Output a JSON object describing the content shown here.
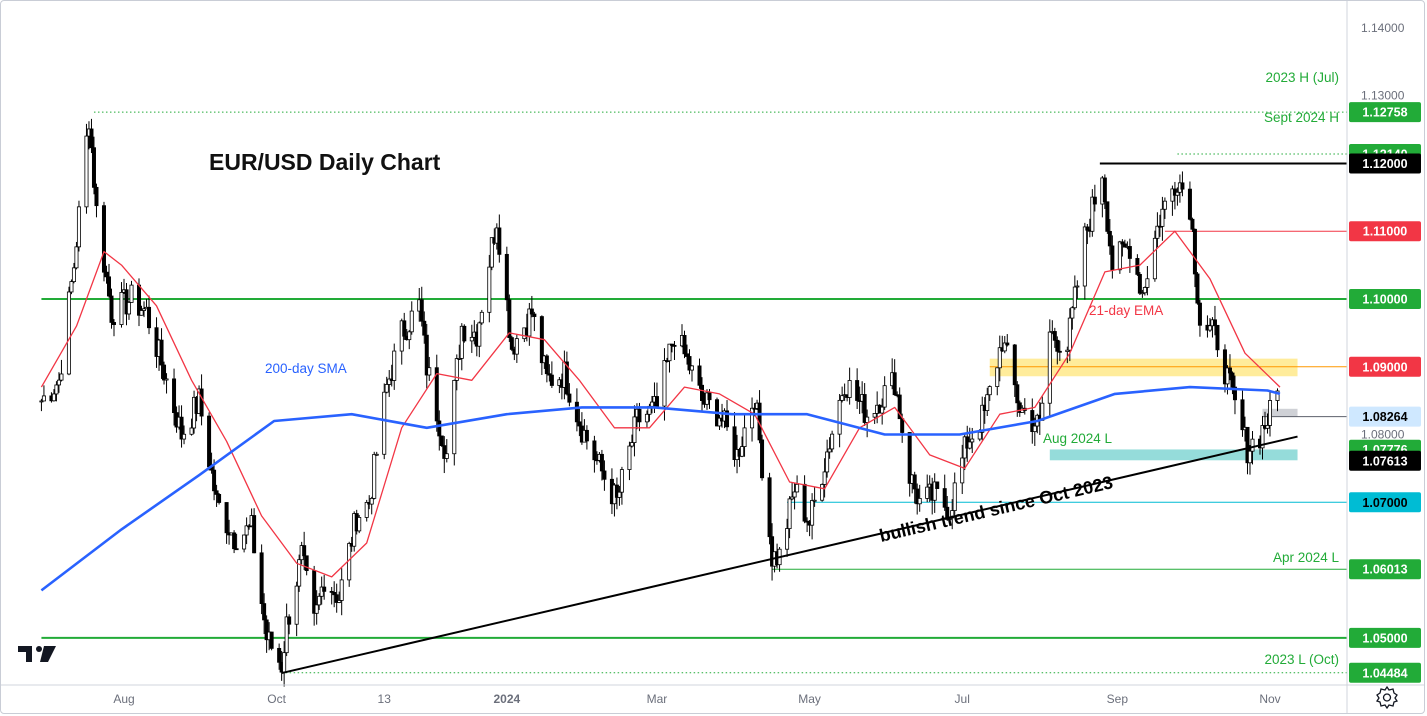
{
  "chart_data": {
    "type": "candlestick",
    "title": "EUR/USD Daily Chart",
    "ylim": [
      1.0395,
      1.1425
    ],
    "y_ticks": [
      "1.14000",
      "1.13000",
      "1.08000"
    ],
    "x_ticks": [
      {
        "label": "Aug",
        "at": "2023-08-01"
      },
      {
        "label": "Oct",
        "at": "2023-10-01"
      },
      {
        "label": "13",
        "at": "2023-11-13"
      },
      {
        "label": "2024",
        "at": "2024-01-01"
      },
      {
        "label": "Mar",
        "at": "2024-03-01"
      },
      {
        "label": "May",
        "at": "2024-05-01"
      },
      {
        "label": "Jul",
        "at": "2024-07-01"
      },
      {
        "label": "Sep",
        "at": "2024-09-01"
      },
      {
        "label": "Nov",
        "at": "2024-11-01"
      }
    ],
    "price_path": [
      [
        "2023-06-29",
        1.085
      ],
      [
        "2023-07-06",
        1.088
      ],
      [
        "2023-07-12",
        1.105
      ],
      [
        "2023-07-18",
        1.127
      ],
      [
        "2023-07-21",
        1.113
      ],
      [
        "2023-07-27",
        1.098
      ],
      [
        "2023-08-04",
        1.1
      ],
      [
        "2023-08-10",
        1.098
      ],
      [
        "2023-08-18",
        1.088
      ],
      [
        "2023-08-24",
        1.08
      ],
      [
        "2023-08-31",
        1.085
      ],
      [
        "2023-09-07",
        1.07
      ],
      [
        "2023-09-14",
        1.065
      ],
      [
        "2023-09-21",
        1.066
      ],
      [
        "2023-09-27",
        1.05
      ],
      [
        "2023-10-03",
        1.046
      ],
      [
        "2023-10-05",
        1.052
      ],
      [
        "2023-10-11",
        1.062
      ],
      [
        "2023-10-16",
        1.052
      ],
      [
        "2023-10-20",
        1.059
      ],
      [
        "2023-10-26",
        1.056
      ],
      [
        "2023-11-02",
        1.068
      ],
      [
        "2023-11-07",
        1.07
      ],
      [
        "2023-11-14",
        1.087
      ],
      [
        "2023-11-20",
        1.095
      ],
      [
        "2023-11-27",
        1.099
      ],
      [
        "2023-11-30",
        1.09
      ],
      [
        "2023-12-08",
        1.077
      ],
      [
        "2023-12-14",
        1.096
      ],
      [
        "2023-12-20",
        1.095
      ],
      [
        "2023-12-28",
        1.112
      ],
      [
        "2024-01-03",
        1.093
      ],
      [
        "2024-01-11",
        1.098
      ],
      [
        "2024-01-17",
        1.088
      ],
      [
        "2024-01-24",
        1.089
      ],
      [
        "2024-01-31",
        1.081
      ],
      [
        "2024-02-06",
        1.076
      ],
      [
        "2024-02-14",
        1.07
      ],
      [
        "2024-02-22",
        1.082
      ],
      [
        "2024-03-01",
        1.084
      ],
      [
        "2024-03-08",
        1.095
      ],
      [
        "2024-03-14",
        1.09
      ],
      [
        "2024-03-19",
        1.085
      ],
      [
        "2024-03-26",
        1.083
      ],
      [
        "2024-04-02",
        1.077
      ],
      [
        "2024-04-09",
        1.086
      ],
      [
        "2024-04-16",
        1.062
      ],
      [
        "2024-04-19",
        1.062
      ],
      [
        "2024-04-25",
        1.072
      ],
      [
        "2024-05-01",
        1.067
      ],
      [
        "2024-05-07",
        1.076
      ],
      [
        "2024-05-15",
        1.088
      ],
      [
        "2024-05-24",
        1.083
      ],
      [
        "2024-06-04",
        1.088
      ],
      [
        "2024-06-10",
        1.074
      ],
      [
        "2024-06-14",
        1.07
      ],
      [
        "2024-06-20",
        1.071
      ],
      [
        "2024-06-26",
        1.069
      ],
      [
        "2024-07-03",
        1.079
      ],
      [
        "2024-07-10",
        1.083
      ],
      [
        "2024-07-17",
        1.094
      ],
      [
        "2024-07-24",
        1.084
      ],
      [
        "2024-08-01",
        1.081
      ],
      [
        "2024-08-05",
        1.095
      ],
      [
        "2024-08-12",
        1.093
      ],
      [
        "2024-08-19",
        1.109
      ],
      [
        "2024-08-26",
        1.119
      ],
      [
        "2024-08-30",
        1.105
      ],
      [
        "2024-09-06",
        1.108
      ],
      [
        "2024-09-11",
        1.101
      ],
      [
        "2024-09-18",
        1.112
      ],
      [
        "2024-09-25",
        1.118
      ],
      [
        "2024-09-30",
        1.114
      ],
      [
        "2024-10-04",
        1.097
      ],
      [
        "2024-10-11",
        1.094
      ],
      [
        "2024-10-18",
        1.084
      ],
      [
        "2024-10-23",
        1.078
      ],
      [
        "2024-10-28",
        1.08
      ],
      [
        "2024-11-01",
        1.083
      ],
      [
        "2024-11-05",
        1.087
      ]
    ],
    "series": [
      {
        "name": "21-day EMA",
        "color": "#f23645",
        "values": [
          [
            "2023-06-29",
            1.087
          ],
          [
            "2023-07-13",
            1.096
          ],
          [
            "2023-07-24",
            1.107
          ],
          [
            "2023-07-31",
            1.105
          ],
          [
            "2023-08-14",
            1.099
          ],
          [
            "2023-08-28",
            1.088
          ],
          [
            "2023-09-11",
            1.079
          ],
          [
            "2023-09-25",
            1.068
          ],
          [
            "2023-10-09",
            1.061
          ],
          [
            "2023-10-23",
            1.059
          ],
          [
            "2023-11-06",
            1.064
          ],
          [
            "2023-11-20",
            1.081
          ],
          [
            "2023-12-04",
            1.089
          ],
          [
            "2023-12-18",
            1.088
          ],
          [
            "2024-01-02",
            1.095
          ],
          [
            "2024-01-16",
            1.094
          ],
          [
            "2024-01-30",
            1.088
          ],
          [
            "2024-02-13",
            1.081
          ],
          [
            "2024-02-27",
            1.081
          ],
          [
            "2024-03-12",
            1.087
          ],
          [
            "2024-03-26",
            1.086
          ],
          [
            "2024-04-09",
            1.083
          ],
          [
            "2024-04-23",
            1.073
          ],
          [
            "2024-05-07",
            1.072
          ],
          [
            "2024-05-21",
            1.081
          ],
          [
            "2024-06-04",
            1.084
          ],
          [
            "2024-06-18",
            1.077
          ],
          [
            "2024-07-02",
            1.075
          ],
          [
            "2024-07-16",
            1.083
          ],
          [
            "2024-07-30",
            1.084
          ],
          [
            "2024-08-13",
            1.092
          ],
          [
            "2024-08-27",
            1.104
          ],
          [
            "2024-09-10",
            1.105
          ],
          [
            "2024-09-24",
            1.11
          ],
          [
            "2024-10-08",
            1.103
          ],
          [
            "2024-10-22",
            1.092
          ],
          [
            "2024-11-05",
            1.087
          ]
        ]
      },
      {
        "name": "200-day SMA",
        "color": "#2962ff",
        "values": [
          [
            "2023-06-29",
            1.057
          ],
          [
            "2023-07-31",
            1.066
          ],
          [
            "2023-08-31",
            1.074
          ],
          [
            "2023-09-30",
            1.082
          ],
          [
            "2023-10-31",
            1.083
          ],
          [
            "2023-11-30",
            1.081
          ],
          [
            "2024-01-01",
            1.083
          ],
          [
            "2024-01-31",
            1.084
          ],
          [
            "2024-02-29",
            1.084
          ],
          [
            "2024-03-31",
            1.083
          ],
          [
            "2024-04-30",
            1.083
          ],
          [
            "2024-05-31",
            1.08
          ],
          [
            "2024-06-30",
            1.08
          ],
          [
            "2024-07-31",
            1.082
          ],
          [
            "2024-08-31",
            1.086
          ],
          [
            "2024-09-30",
            1.087
          ],
          [
            "2024-10-31",
            1.0865
          ],
          [
            "2024-11-05",
            1.086
          ]
        ]
      }
    ],
    "levels": [
      {
        "price": "1.12758",
        "value": 1.12758,
        "label": "2023 H (Jul)",
        "color": "#22ab38",
        "bg": "#22ab38",
        "fg": "#ffffff",
        "style": "dotted",
        "from": "2023-07-20"
      },
      {
        "price": "1.12140",
        "value": 1.1214,
        "label": "Sept 2024 H",
        "color": "#22ab38",
        "bg": "#22ab38",
        "fg": "#ffffff",
        "style": "dotted",
        "from": "2024-09-25"
      },
      {
        "price": "1.12000",
        "value": 1.12,
        "label": "",
        "color": "#000000",
        "bg": "#000000",
        "fg": "#ffffff",
        "style": "solid-bold",
        "from": "2024-08-25"
      },
      {
        "price": "1.11000",
        "value": 1.11,
        "label": "",
        "color": "#f23645",
        "bg": "#f23645",
        "fg": "#ffffff",
        "style": "solid",
        "from": "2024-09-20"
      },
      {
        "price": "1.10000",
        "value": 1.1,
        "label": "",
        "color": "#22ab38",
        "bg": "#22ab38",
        "fg": "#ffffff",
        "style": "solid-bold",
        "from": "2023-06-29"
      },
      {
        "price": "1.09000",
        "value": 1.09,
        "label": "",
        "color": "#ff9800",
        "bg": "#f23645",
        "fg": "#ffffff",
        "style": "solid",
        "from": "2024-07-12"
      },
      {
        "price": "1.08264",
        "value": 1.08264,
        "label": "",
        "color": "#5d606b",
        "bg": "#cfe8ff",
        "fg": "#000000",
        "style": "solid",
        "from": "2024-10-29"
      },
      {
        "price": "1.07776",
        "value": 1.07776,
        "label": "Aug 2024 L",
        "color": "#22ab38",
        "bg": "#22ab38",
        "fg": "#ffffff",
        "style": "none",
        "from": "2024-08-05"
      },
      {
        "price": "1.07613",
        "value": 1.07613,
        "label": "",
        "color": "#000000",
        "bg": "#000000",
        "fg": "#ffffff",
        "style": "none",
        "from": "2024-08-05"
      },
      {
        "price": "1.07000",
        "value": 1.07,
        "label": "",
        "color": "#00bcd4",
        "bg": "#00bcd4",
        "fg": "#000000",
        "style": "solid",
        "from": "2024-04-22"
      },
      {
        "price": "1.06013",
        "value": 1.06013,
        "label": "Apr 2024 L",
        "color": "#22ab38",
        "bg": "#22ab38",
        "fg": "#ffffff",
        "style": "solid",
        "from": "2024-04-16"
      },
      {
        "price": "1.05000",
        "value": 1.05,
        "label": "",
        "color": "#22ab38",
        "bg": "#22ab38",
        "fg": "#ffffff",
        "style": "solid-bold",
        "from": "2023-06-29"
      },
      {
        "price": "1.04484",
        "value": 1.04484,
        "label": "2023 L (Oct)",
        "color": "#22ab38",
        "bg": "#22ab38",
        "fg": "#ffffff",
        "style": "dotted",
        "from": "2023-10-03"
      }
    ],
    "zones": [
      {
        "from": "2024-07-12",
        "to": "2024-11-12",
        "low": 1.0886,
        "high": 1.0912,
        "color": "#ffe98a"
      },
      {
        "from": "2024-10-29",
        "to": "2024-11-12",
        "low": 1.0826,
        "high": 1.0838,
        "color": "#c7c9cf"
      },
      {
        "from": "2024-08-05",
        "to": "2024-11-12",
        "low": 1.0762,
        "high": 1.0778,
        "color": "#82d6d4"
      }
    ],
    "trendline": {
      "label": "bullish trend since Oct 2023",
      "from": [
        "2023-10-03",
        1.0448
      ],
      "to": [
        "2024-11-12",
        1.0797
      ]
    },
    "annotations": [
      {
        "text": "21-day EMA",
        "color": "#f23645"
      },
      {
        "text": "200-day SMA",
        "color": "#2962ff"
      }
    ],
    "colors": {
      "up": "#ffffff",
      "down": "#000000",
      "outline": "#000000"
    }
  }
}
